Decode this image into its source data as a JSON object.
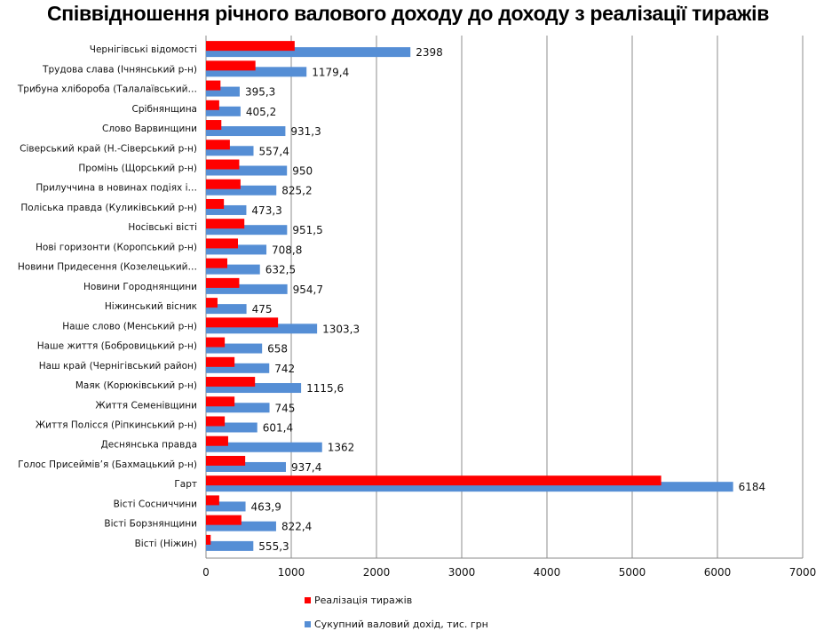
{
  "chart_data": {
    "type": "bar",
    "orientation": "horizontal",
    "title": "Співвідношення річного валового доходу до доходу з реалізації тиражів",
    "xlabel": "",
    "ylabel": "",
    "xlim": [
      0,
      7000
    ],
    "xticks": [
      "0",
      "1000",
      "2000",
      "3000",
      "4000",
      "5000",
      "6000",
      "7000"
    ],
    "xtick_values": [
      0,
      1000,
      2000,
      3000,
      4000,
      5000,
      6000,
      7000
    ],
    "grid": true,
    "legend_position": "bottom",
    "categories": [
      "Чернігівські відомості",
      "Трудова слава (Ічнянський р-н)",
      "Трибуна хлібороба (Талалаївський…",
      "Срібнянщина",
      "Слово Варвинщини",
      "Сіверський край (Н.-Сіверський р-н)",
      "Промінь (Щорський р-н)",
      "Прилуччина в новинах подіях і…",
      "Поліська правда (Куликівський р-н)",
      "Носівські вісті",
      "Нові горизонти (Коропський р-н)",
      "Новини Придесення (Козелецький…",
      "Новини Городнянщини",
      "Ніжинський вісник",
      "Наше слово (Менський р-н)",
      "Наше життя (Бобровицький р-н)",
      "Наш край (Чернігівський район)",
      "Маяк (Корюківський р-н)",
      "Життя Семенівщини",
      "Життя Полісся (Ріпкинський р-н)",
      "Деснянська правда",
      "Голос Присеймів’я (Бахмацький р-н)",
      "Гарт",
      "Вісті Сосниччини",
      "Вісті Борзнянщини",
      "Вісті (Ніжин)"
    ],
    "series": [
      {
        "name": "Реалізація тиражів",
        "color": "#ff0000",
        "values": [
          1040,
          580,
          170,
          155,
          180,
          280,
          390,
          405,
          210,
          450,
          375,
          250,
          390,
          135,
          845,
          220,
          335,
          575,
          335,
          220,
          260,
          460,
          5340,
          155,
          415,
          55
        ]
      },
      {
        "name": "Сукупний валовий дохід, тис. грн",
        "color": "#558ed5",
        "values": [
          2398,
          1179.4,
          395.3,
          405.2,
          931.3,
          557.4,
          950,
          825.2,
          473.3,
          951.5,
          708.8,
          632.5,
          954.7,
          475,
          1303.3,
          658,
          742,
          1115.6,
          745,
          601.4,
          1362,
          937.4,
          6184,
          463.9,
          822.4,
          555.3
        ],
        "labels": [
          "2398",
          "1179,4",
          "395,3",
          "405,2",
          "931,3",
          "557,4",
          "950",
          "825,2",
          "473,3",
          "951,5",
          "708,8",
          "632,5",
          "954,7",
          "475",
          "1303,3",
          "658",
          "742",
          "1115,6",
          "745",
          "601,4",
          "1362",
          "937,4",
          "6184",
          "463,9",
          "822,4",
          "555,3"
        ]
      }
    ]
  }
}
